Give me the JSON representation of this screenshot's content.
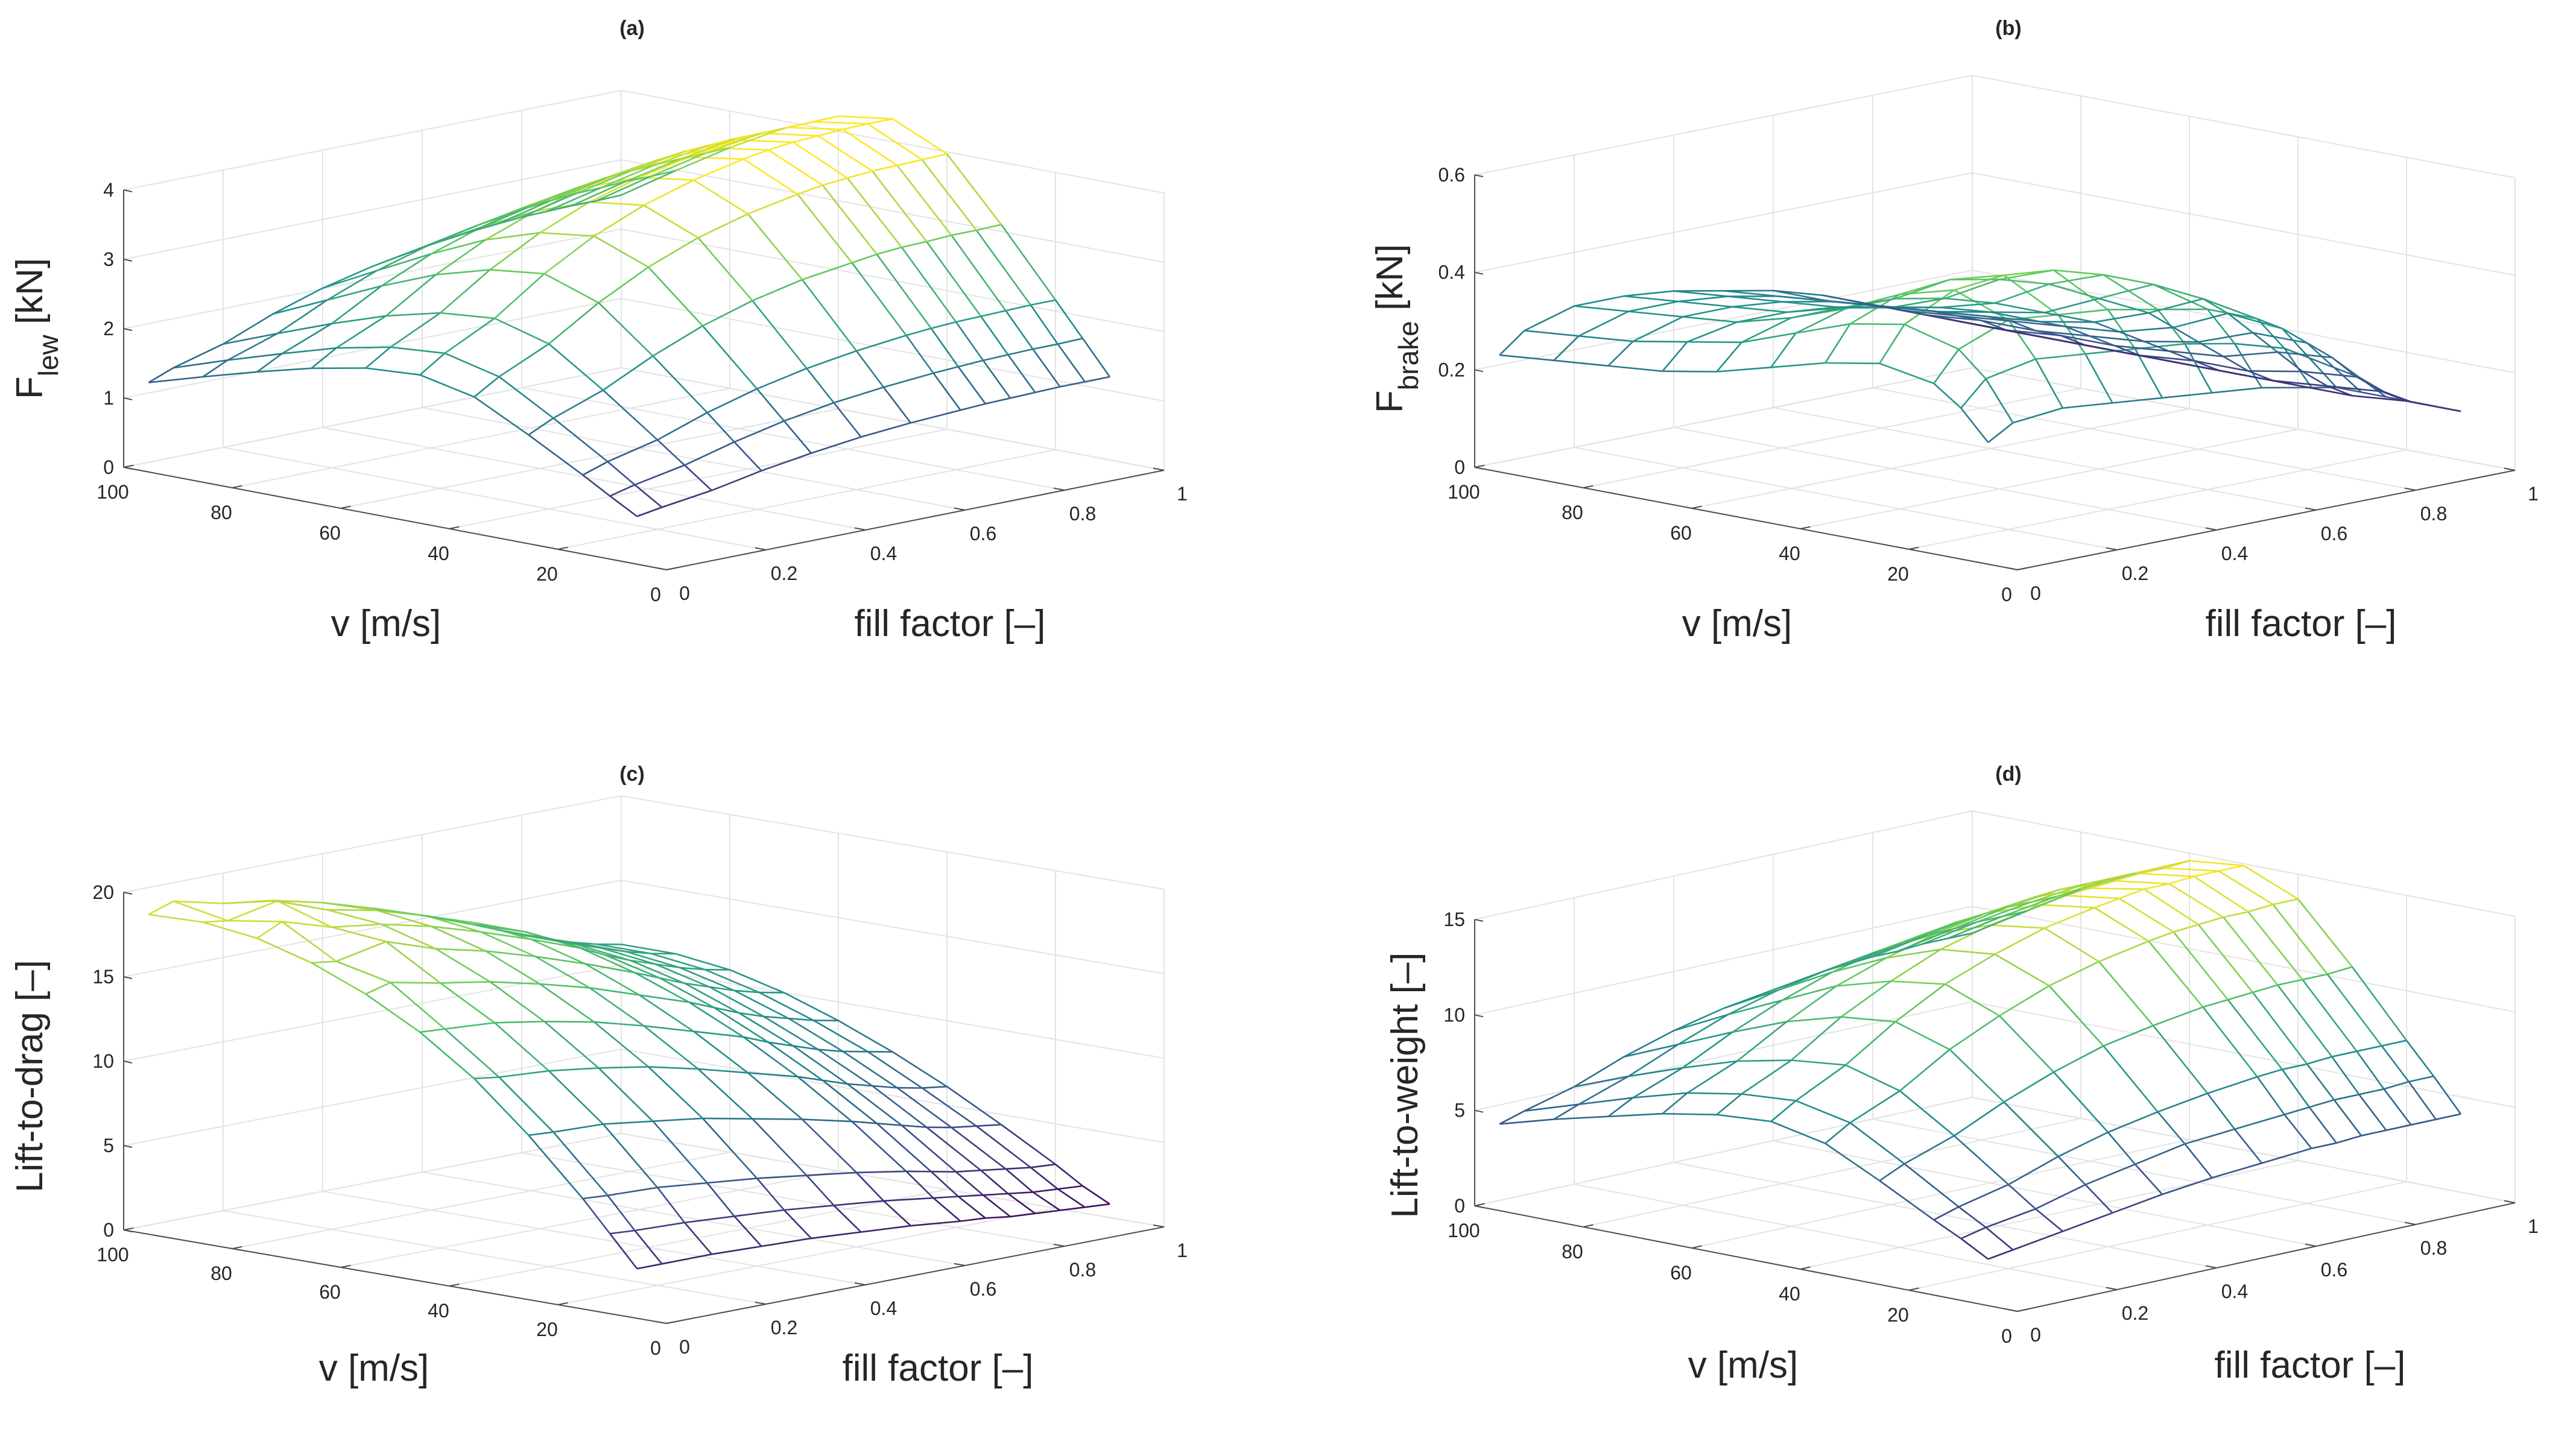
{
  "colormap": [
    "#440154",
    "#3b528b",
    "#21918c",
    "#5ec962",
    "#fde725"
  ],
  "chart_data": [
    {
      "id": "a",
      "type": "surface",
      "title": "(a)",
      "zlabel": {
        "main": "F",
        "sub": "lew",
        "unit": "[kN]"
      },
      "xlabel": "v [m/s]",
      "ylabel": "fill factor [–]",
      "xlim": [
        0,
        100
      ],
      "ylim": [
        0,
        1
      ],
      "zlim": [
        0,
        4
      ],
      "xticks": [
        0,
        20,
        40,
        60,
        80,
        100
      ],
      "xticklabels": [
        "0",
        "20",
        "40",
        "60",
        "80",
        "100"
      ],
      "yticks": [
        0,
        0.2,
        0.4,
        0.6,
        0.8,
        1
      ],
      "yticklabels": [
        "0",
        "0.2",
        "0.4",
        "0.6",
        "0.8",
        "1"
      ],
      "zticks": [
        0,
        1,
        2,
        3,
        4
      ],
      "zticklabels": [
        "0",
        "1",
        "2",
        "3",
        "4"
      ],
      "grid": true,
      "v": [
        10,
        15,
        20,
        30,
        40,
        50,
        60,
        70,
        80,
        90,
        100
      ],
      "fill": [
        0.05,
        0.1,
        0.2,
        0.3,
        0.4,
        0.5,
        0.6,
        0.7,
        0.75,
        0.8,
        0.85,
        0.9,
        0.95,
        1.0
      ],
      "z": [
        [
          0.55,
          0.61,
          0.71,
          0.85,
          0.96,
          1.05,
          1.11,
          1.15,
          1.17,
          1.18,
          1.19,
          1.2,
          1.2,
          1.2
        ],
        [
          0.77,
          0.86,
          1.0,
          1.19,
          1.35,
          1.47,
          1.55,
          1.61,
          1.63,
          1.65,
          1.66,
          1.67,
          1.67,
          1.68
        ],
        [
          1.0,
          1.12,
          1.29,
          1.54,
          1.74,
          1.89,
          2.0,
          2.08,
          2.11,
          2.13,
          2.14,
          2.15,
          2.16,
          2.16
        ],
        [
          1.43,
          1.6,
          1.86,
          2.21,
          2.5,
          2.72,
          2.88,
          2.98,
          3.03,
          3.06,
          3.07,
          3.09,
          3.09,
          3.1
        ],
        [
          1.83,
          2.05,
          2.38,
          2.83,
          3.2,
          3.48,
          3.68,
          3.82,
          3.88,
          3.91,
          3.94,
          3.95,
          3.96,
          3.97
        ],
        [
          2.0,
          2.24,
          2.6,
          3.1,
          3.5,
          3.8,
          4.02,
          4.18,
          4.24,
          4.28,
          4.3,
          4.32,
          4.33,
          4.33
        ],
        [
          1.95,
          2.18,
          2.53,
          3.01,
          3.4,
          3.7,
          3.91,
          4.06,
          4.12,
          4.16,
          4.19,
          4.2,
          4.21,
          4.22
        ],
        [
          1.8,
          2.02,
          2.34,
          2.79,
          3.15,
          3.42,
          3.62,
          3.76,
          3.81,
          3.85,
          3.87,
          3.89,
          3.89,
          3.9
        ],
        [
          1.6,
          1.79,
          2.08,
          2.48,
          2.8,
          3.04,
          3.22,
          3.34,
          3.39,
          3.42,
          3.44,
          3.45,
          3.46,
          3.47
        ],
        [
          1.38,
          1.55,
          1.79,
          2.13,
          2.41,
          2.62,
          2.77,
          2.88,
          2.92,
          2.95,
          2.96,
          2.98,
          2.98,
          2.99
        ],
        [
          1.15,
          1.29,
          1.49,
          1.78,
          2.01,
          2.18,
          2.31,
          2.4,
          2.43,
          2.46,
          2.47,
          2.48,
          2.48,
          2.49
        ]
      ]
    },
    {
      "id": "b",
      "type": "surface",
      "title": "(b)",
      "zlabel": {
        "main": "F",
        "sub": "brake",
        "unit": "[kN]"
      },
      "xlabel": "v [m/s]",
      "ylabel": "fill factor [–]",
      "xlim": [
        0,
        100
      ],
      "ylim": [
        0,
        1
      ],
      "zlim": [
        0,
        0.6
      ],
      "xticks": [
        0,
        20,
        40,
        60,
        80,
        100
      ],
      "xticklabels": [
        "0",
        "20",
        "40",
        "60",
        "80",
        "100"
      ],
      "yticks": [
        0,
        0.2,
        0.4,
        0.6,
        0.8,
        1
      ],
      "yticklabels": [
        "0",
        "0.2",
        "0.4",
        "0.6",
        "0.8",
        "1"
      ],
      "zticks": [
        0,
        0.2,
        0.4,
        0.6
      ],
      "zticklabels": [
        "0",
        "0.2",
        "0.4",
        "0.6"
      ],
      "grid": true,
      "v": [
        10,
        15,
        20,
        30,
        40,
        50,
        60,
        70,
        80,
        90,
        100
      ],
      "fill": [
        0.05,
        0.1,
        0.2,
        0.3,
        0.4,
        0.5,
        0.6,
        0.7,
        0.75,
        0.8,
        0.85,
        0.9,
        0.95,
        1.0
      ],
      "z": [
        [
          0.23,
          0.26,
          0.27,
          0.26,
          0.25,
          0.24,
          0.23,
          0.21,
          0.2,
          0.18,
          0.16,
          0.14,
          0.12,
          0.1
        ],
        [
          0.29,
          0.34,
          0.36,
          0.35,
          0.34,
          0.33,
          0.31,
          0.28,
          0.25,
          0.22,
          0.19,
          0.15,
          0.12,
          0.1
        ],
        [
          0.33,
          0.39,
          0.43,
          0.42,
          0.41,
          0.39,
          0.37,
          0.33,
          0.3,
          0.26,
          0.22,
          0.17,
          0.13,
          0.1
        ],
        [
          0.35,
          0.42,
          0.47,
          0.48,
          0.47,
          0.44,
          0.4,
          0.35,
          0.31,
          0.26,
          0.21,
          0.16,
          0.12,
          0.09
        ],
        [
          0.33,
          0.4,
          0.44,
          0.45,
          0.43,
          0.4,
          0.35,
          0.3,
          0.26,
          0.22,
          0.18,
          0.14,
          0.11,
          0.09
        ],
        [
          0.3,
          0.36,
          0.39,
          0.39,
          0.37,
          0.34,
          0.3,
          0.26,
          0.23,
          0.2,
          0.17,
          0.14,
          0.11,
          0.09
        ],
        [
          0.27,
          0.32,
          0.35,
          0.35,
          0.33,
          0.31,
          0.28,
          0.24,
          0.22,
          0.19,
          0.16,
          0.13,
          0.11,
          0.09
        ],
        [
          0.25,
          0.3,
          0.32,
          0.32,
          0.31,
          0.29,
          0.26,
          0.23,
          0.21,
          0.18,
          0.16,
          0.13,
          0.11,
          0.09
        ],
        [
          0.24,
          0.28,
          0.31,
          0.31,
          0.3,
          0.28,
          0.25,
          0.22,
          0.2,
          0.18,
          0.15,
          0.13,
          0.11,
          0.09
        ],
        [
          0.23,
          0.27,
          0.3,
          0.3,
          0.29,
          0.27,
          0.24,
          0.21,
          0.19,
          0.17,
          0.15,
          0.13,
          0.11,
          0.09
        ],
        [
          0.22,
          0.26,
          0.29,
          0.29,
          0.28,
          0.26,
          0.24,
          0.21,
          0.19,
          0.17,
          0.15,
          0.13,
          0.11,
          0.09
        ]
      ]
    },
    {
      "id": "c",
      "type": "surface",
      "title": "(c)",
      "zlabel": {
        "main": "Lift-to-drag [–]",
        "sub": "",
        "unit": ""
      },
      "xlabel": "v [m/s]",
      "ylabel": "fill factor [–]",
      "xlim": [
        0,
        100
      ],
      "ylim": [
        0,
        1
      ],
      "zlim": [
        0,
        20
      ],
      "xticks": [
        0,
        20,
        40,
        60,
        80,
        100
      ],
      "xticklabels": [
        "0",
        "20",
        "40",
        "60",
        "80",
        "100"
      ],
      "yticks": [
        0,
        0.2,
        0.4,
        0.6,
        0.8,
        1
      ],
      "yticklabels": [
        "0",
        "0.2",
        "0.4",
        "0.6",
        "0.8",
        "1"
      ],
      "zticks": [
        0,
        5,
        10,
        15,
        20
      ],
      "zticklabels": [
        "0",
        "5",
        "10",
        "15",
        "20"
      ],
      "grid": true,
      "v": [
        10,
        15,
        20,
        30,
        40,
        50,
        60,
        70,
        80,
        90,
        100
      ],
      "fill": [
        0.05,
        0.1,
        0.2,
        0.3,
        0.4,
        0.5,
        0.6,
        0.7,
        0.75,
        0.8,
        0.85,
        0.9,
        0.95,
        1.0
      ],
      "z": [
        [
          2.4,
          2.4,
          2.4,
          2.3,
          2.2,
          2.0,
          1.8,
          1.5,
          1.4,
          1.2,
          1.1,
          1.0,
          0.9,
          0.8
        ],
        [
          4.2,
          4.1,
          4.0,
          3.8,
          3.6,
          3.3,
          3.0,
          2.6,
          2.4,
          2.2,
          2.0,
          1.8,
          1.7,
          1.6
        ],
        [
          6.0,
          5.9,
          5.8,
          5.5,
          5.2,
          4.8,
          4.4,
          3.9,
          3.6,
          3.3,
          3.1,
          2.9,
          2.7,
          2.6
        ],
        [
          9.2,
          9.1,
          9.0,
          8.6,
          8.2,
          7.6,
          7.0,
          6.3,
          5.9,
          5.5,
          5.1,
          4.8,
          4.6,
          4.4
        ],
        [
          12.0,
          11.8,
          11.6,
          11.2,
          10.7,
          10.0,
          9.2,
          8.4,
          7.9,
          7.4,
          7.0,
          6.6,
          6.3,
          6.1
        ],
        [
          14.2,
          14.1,
          13.9,
          13.4,
          12.8,
          12.0,
          11.1,
          10.2,
          9.6,
          9.1,
          8.6,
          8.2,
          7.9,
          7.6
        ],
        [
          15.9,
          16.3,
          15.7,
          15.2,
          14.5,
          13.7,
          12.7,
          11.7,
          11.1,
          10.5,
          10.0,
          9.6,
          9.2,
          8.9
        ],
        [
          17.2,
          17.0,
          17.6,
          16.6,
          15.9,
          15.0,
          14.0,
          12.9,
          12.3,
          11.7,
          11.2,
          10.7,
          10.3,
          10.0
        ],
        [
          18.1,
          18.8,
          17.9,
          17.5,
          16.8,
          15.9,
          14.9,
          13.8,
          13.1,
          12.5,
          12.0,
          11.5,
          11.1,
          10.8
        ],
        [
          18.5,
          18.3,
          18.9,
          17.8,
          17.2,
          16.3,
          15.3,
          14.2,
          13.5,
          12.9,
          12.4,
          11.9,
          11.5,
          11.2
        ],
        [
          18.4,
          18.9,
          18.2,
          17.8,
          17.1,
          16.2,
          15.2,
          14.1,
          13.5,
          12.9,
          12.4,
          11.9,
          11.5,
          11.2
        ]
      ]
    },
    {
      "id": "d",
      "type": "surface",
      "title": "(d)",
      "zlabel": {
        "main": "Lift-to-weight [–]",
        "sub": "",
        "unit": ""
      },
      "xlabel": "v [m/s]",
      "ylabel": "fill factor [–]",
      "xlim": [
        0,
        100
      ],
      "ylim": [
        0,
        1
      ],
      "zlim": [
        0,
        15
      ],
      "xticks": [
        0,
        20,
        40,
        60,
        80,
        100
      ],
      "xticklabels": [
        "0",
        "20",
        "40",
        "60",
        "80",
        "100"
      ],
      "yticks": [
        0,
        0.2,
        0.4,
        0.6,
        0.8,
        1
      ],
      "yticklabels": [
        "0",
        "0.2",
        "0.4",
        "0.6",
        "0.8",
        "1"
      ],
      "zticks": [
        0,
        5,
        10,
        15
      ],
      "zticklabels": [
        "0",
        "5",
        "10",
        "15"
      ],
      "grid": true,
      "v": [
        10,
        15,
        20,
        30,
        40,
        50,
        60,
        70,
        80,
        90,
        100
      ],
      "fill": [
        0.05,
        0.1,
        0.2,
        0.3,
        0.4,
        0.5,
        0.6,
        0.7,
        0.75,
        0.8,
        0.85,
        0.9,
        0.95,
        1.0
      ],
      "z": [
        [
          1.9,
          2.1,
          2.5,
          2.9,
          3.3,
          3.6,
          3.8,
          4.0,
          4.0,
          4.1,
          4.1,
          4.1,
          4.1,
          4.1
        ],
        [
          2.7,
          3.0,
          3.4,
          4.1,
          4.6,
          5.1,
          5.3,
          5.5,
          5.6,
          5.7,
          5.7,
          5.7,
          5.8,
          5.8
        ],
        [
          3.4,
          3.8,
          4.4,
          5.3,
          6.0,
          6.5,
          6.9,
          7.2,
          7.3,
          7.3,
          7.4,
          7.4,
          7.4,
          7.4
        ],
        [
          4.9,
          5.5,
          6.4,
          7.6,
          8.6,
          9.4,
          9.9,
          10.3,
          10.4,
          10.5,
          10.6,
          10.6,
          10.6,
          10.7
        ],
        [
          6.3,
          7.1,
          8.2,
          9.8,
          11.0,
          12.0,
          12.7,
          13.2,
          13.4,
          13.5,
          13.6,
          13.6,
          13.7,
          13.7
        ],
        [
          6.9,
          7.7,
          9.0,
          10.7,
          12.1,
          13.1,
          13.9,
          14.4,
          14.6,
          14.8,
          14.8,
          14.9,
          14.9,
          14.9
        ],
        [
          6.7,
          7.5,
          8.7,
          10.4,
          11.7,
          12.8,
          13.5,
          14.0,
          14.2,
          14.3,
          14.4,
          14.5,
          14.5,
          14.6
        ],
        [
          6.2,
          7.0,
          8.1,
          9.6,
          10.9,
          11.8,
          12.5,
          13.0,
          13.1,
          13.3,
          13.4,
          13.4,
          13.4,
          13.4
        ],
        [
          5.5,
          6.2,
          7.2,
          8.5,
          9.6,
          10.5,
          11.1,
          11.5,
          11.7,
          11.8,
          11.9,
          11.9,
          11.9,
          12.0
        ],
        [
          4.8,
          5.3,
          6.2,
          7.3,
          8.3,
          9.0,
          9.5,
          9.9,
          10.0,
          10.2,
          10.2,
          10.3,
          10.3,
          10.3
        ],
        [
          4.0,
          4.4,
          5.1,
          6.1,
          6.9,
          7.5,
          7.9,
          8.3,
          8.4,
          8.5,
          8.5,
          8.6,
          8.6,
          8.6
        ]
      ]
    }
  ]
}
